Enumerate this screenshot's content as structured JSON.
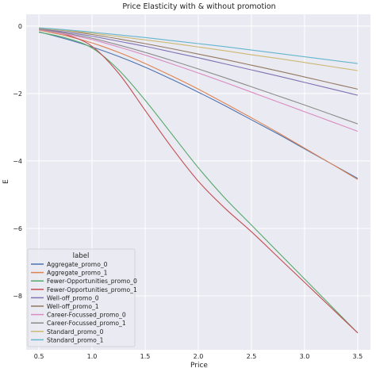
{
  "chart_data": {
    "type": "line",
    "title": "Price Elasticity with & without promotion",
    "xlabel": "Price",
    "ylabel": "E",
    "xlim": [
      0.38,
      3.62
    ],
    "ylim": [
      -9.6,
      0.35
    ],
    "xticks": [
      0.5,
      1.0,
      1.5,
      2.0,
      2.5,
      3.0,
      3.5
    ],
    "xtick_labels": [
      "0.5",
      "1.0",
      "1.5",
      "2.0",
      "2.5",
      "3.0",
      "3.5"
    ],
    "yticks": [
      0,
      -2,
      -4,
      -6,
      -8
    ],
    "ytick_labels": [
      "0",
      "−2",
      "−4",
      "−6",
      "−8"
    ],
    "grid": true,
    "legend": {
      "title": "label",
      "position": "lower-left"
    },
    "x": [
      0.5,
      0.75,
      1.0,
      1.25,
      1.5,
      1.75,
      2.0,
      2.25,
      2.5,
      2.75,
      3.0,
      3.25,
      3.5
    ],
    "series": [
      {
        "name": "Aggregate_promo_0",
        "color": "#4c72b0",
        "values": [
          -0.17,
          -0.38,
          -0.62,
          -0.9,
          -1.22,
          -1.58,
          -1.96,
          -2.36,
          -2.78,
          -3.2,
          -3.64,
          -4.08,
          -4.52
        ]
      },
      {
        "name": "Aggregate_promo_1",
        "color": "#dd8452",
        "values": [
          -0.12,
          -0.28,
          -0.5,
          -0.78,
          -1.11,
          -1.48,
          -1.87,
          -2.29,
          -2.72,
          -3.16,
          -3.62,
          -4.08,
          -4.55
        ]
      },
      {
        "name": "Fewer-Opportunities_promo_0",
        "color": "#55a868",
        "values": [
          -0.18,
          -0.35,
          -0.65,
          -1.3,
          -2.2,
          -3.2,
          -4.2,
          -5.1,
          -5.9,
          -6.7,
          -7.5,
          -8.3,
          -9.1
        ]
      },
      {
        "name": "Fewer-Opportunities_promo_1",
        "color": "#c44e52",
        "values": [
          -0.08,
          -0.25,
          -0.6,
          -1.4,
          -2.5,
          -3.6,
          -4.6,
          -5.4,
          -6.1,
          -6.85,
          -7.6,
          -8.35,
          -9.1
        ]
      },
      {
        "name": "Well-off_promo_0",
        "color": "#8172b3",
        "values": [
          -0.08,
          -0.18,
          -0.3,
          -0.45,
          -0.6,
          -0.77,
          -0.94,
          -1.12,
          -1.3,
          -1.48,
          -1.67,
          -1.86,
          -2.05
        ]
      },
      {
        "name": "Well-off_promo_1",
        "color": "#937860",
        "values": [
          -0.06,
          -0.14,
          -0.25,
          -0.38,
          -0.52,
          -0.67,
          -0.83,
          -0.99,
          -1.16,
          -1.33,
          -1.51,
          -1.69,
          -1.87
        ]
      },
      {
        "name": "Career-Focussed_promo_0",
        "color": "#da8bc3",
        "values": [
          -0.1,
          -0.24,
          -0.4,
          -0.62,
          -0.86,
          -1.12,
          -1.39,
          -1.67,
          -1.96,
          -2.25,
          -2.54,
          -2.83,
          -3.12
        ]
      },
      {
        "name": "Career-Focussed_promo_1",
        "color": "#8c8c8c",
        "values": [
          -0.09,
          -0.21,
          -0.36,
          -0.56,
          -0.78,
          -1.02,
          -1.27,
          -1.53,
          -1.8,
          -2.07,
          -2.34,
          -2.62,
          -2.9
        ]
      },
      {
        "name": "Standard_promo_0",
        "color": "#ccb974",
        "values": [
          -0.06,
          -0.13,
          -0.21,
          -0.31,
          -0.41,
          -0.51,
          -0.62,
          -0.73,
          -0.85,
          -0.96,
          -1.08,
          -1.2,
          -1.32
        ]
      },
      {
        "name": "Standard_promo_1",
        "color": "#64b5cd",
        "values": [
          -0.05,
          -0.11,
          -0.18,
          -0.26,
          -0.34,
          -0.43,
          -0.52,
          -0.61,
          -0.71,
          -0.81,
          -0.91,
          -1.01,
          -1.11
        ]
      }
    ]
  }
}
